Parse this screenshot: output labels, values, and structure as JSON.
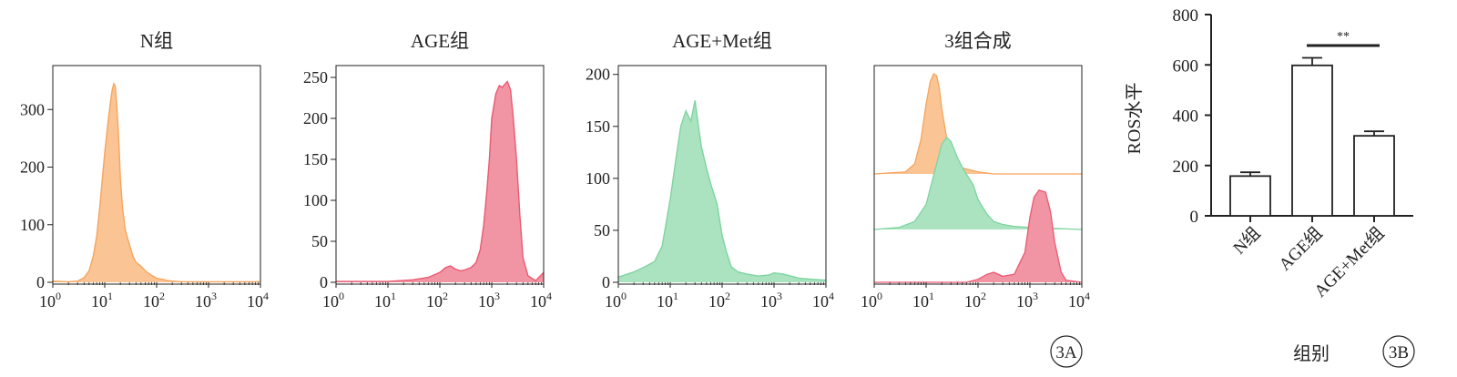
{
  "chart_data": [
    {
      "type": "area",
      "title": "N组",
      "xscale": "log",
      "xlim": [
        1,
        10000
      ],
      "ylim": [
        0,
        370
      ],
      "yticks": [
        0,
        100,
        200,
        300
      ],
      "color": "#f7a45c",
      "x": [
        1,
        2,
        3,
        4,
        5,
        6,
        7,
        8,
        9,
        10,
        11,
        12,
        13,
        14,
        15,
        16,
        17,
        18,
        19,
        20,
        22,
        25,
        30,
        35,
        40,
        50,
        60,
        80,
        100,
        130,
        160,
        200,
        300,
        500,
        1000,
        3000,
        10000
      ],
      "values": [
        2,
        1,
        2,
        8,
        20,
        45,
        80,
        130,
        180,
        225,
        260,
        290,
        315,
        335,
        345,
        340,
        310,
        270,
        230,
        180,
        130,
        90,
        65,
        45,
        35,
        28,
        20,
        12,
        7,
        5,
        3,
        2,
        1,
        1,
        1,
        1,
        1
      ]
    },
    {
      "type": "area",
      "title": "AGE组",
      "xscale": "log",
      "xlim": [
        1,
        10000
      ],
      "ylim": [
        0,
        260
      ],
      "yticks": [
        0,
        50,
        100,
        150,
        200,
        250
      ],
      "color": "#ea5a72",
      "x": [
        1,
        3,
        10,
        30,
        60,
        100,
        130,
        160,
        200,
        250,
        300,
        400,
        500,
        600,
        700,
        800,
        900,
        1000,
        1200,
        1400,
        1600,
        1800,
        2000,
        2300,
        2600,
        3000,
        3500,
        4000,
        5000,
        7000,
        10000
      ],
      "values": [
        1,
        1,
        1,
        3,
        6,
        12,
        18,
        20,
        16,
        14,
        15,
        18,
        24,
        40,
        70,
        110,
        150,
        200,
        230,
        240,
        238,
        242,
        245,
        235,
        200,
        150,
        80,
        30,
        8,
        2,
        12
      ]
    },
    {
      "type": "area",
      "title": "AGE+Met组",
      "xscale": "log",
      "xlim": [
        1,
        10000
      ],
      "ylim": [
        0,
        205
      ],
      "yticks": [
        0,
        50,
        100,
        150,
        200
      ],
      "color": "#7dd4a0",
      "x": [
        1,
        2,
        3,
        5,
        7,
        10,
        13,
        16,
        20,
        25,
        30,
        35,
        40,
        50,
        60,
        80,
        100,
        120,
        150,
        200,
        300,
        500,
        800,
        1000,
        1500,
        3000,
        5000,
        10000
      ],
      "values": [
        5,
        10,
        14,
        20,
        35,
        80,
        120,
        150,
        165,
        155,
        175,
        150,
        130,
        110,
        95,
        75,
        45,
        30,
        15,
        10,
        8,
        6,
        7,
        9,
        8,
        4,
        3,
        2
      ]
    },
    {
      "type": "area",
      "title": "3组合成",
      "xscale": "log",
      "xlim": [
        1,
        10000
      ],
      "series": [
        {
          "color": "#f7a45c",
          "x": [
            1,
            4,
            6,
            8,
            10,
            12,
            14,
            16,
            18,
            20,
            25,
            30,
            40,
            50,
            70,
            100,
            200,
            10000
          ],
          "values": [
            0,
            2,
            10,
            35,
            70,
            92,
            100,
            98,
            85,
            65,
            35,
            18,
            10,
            6,
            4,
            2,
            0,
            0
          ]
        },
        {
          "color": "#7dd4a0",
          "x": [
            1,
            3,
            6,
            10,
            15,
            20,
            25,
            30,
            40,
            50,
            60,
            80,
            100,
            150,
            200,
            300,
            500,
            1000,
            10000
          ],
          "values": [
            0,
            2,
            8,
            25,
            60,
            85,
            92,
            88,
            72,
            62,
            55,
            45,
            30,
            15,
            8,
            5,
            3,
            2,
            0
          ]
        },
        {
          "color": "#ea5a72",
          "x": [
            1,
            60,
            100,
            150,
            200,
            300,
            500,
            800,
            1000,
            1200,
            1500,
            2000,
            2500,
            3000,
            4000,
            5000,
            10000
          ],
          "values": [
            0,
            0,
            3,
            8,
            10,
            6,
            8,
            30,
            65,
            85,
            92,
            90,
            70,
            40,
            10,
            2,
            0
          ]
        }
      ]
    },
    {
      "type": "bar",
      "categories": [
        "N组",
        "AGE组",
        "AGE+Met组"
      ],
      "values": [
        158,
        598,
        318
      ],
      "errors": [
        15,
        30,
        18
      ],
      "ylabel": "ROS水平",
      "xlabel": "组别",
      "ylim": [
        0,
        800
      ],
      "yticks": [
        0,
        200,
        400,
        600,
        800
      ],
      "significance": {
        "from": "AGE组",
        "to": "AGE+Met组",
        "label": "**"
      }
    }
  ],
  "panel_labels": {
    "a": "3A",
    "b": "3B"
  }
}
